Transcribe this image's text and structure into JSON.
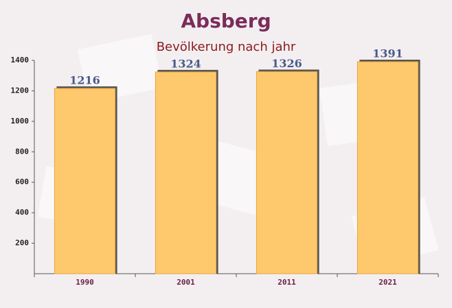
{
  "chart_data": {
    "type": "bar",
    "title": "Absberg",
    "subtitle": "Bevölkerung nach jahr",
    "categories": [
      "1990",
      "2001",
      "2011",
      "2021"
    ],
    "values": [
      1216,
      1324,
      1326,
      1391
    ],
    "color": "#fec96d",
    "ylim": [
      0,
      1400
    ],
    "yticks": [
      200,
      400,
      600,
      800,
      1000,
      1200,
      1400
    ]
  }
}
